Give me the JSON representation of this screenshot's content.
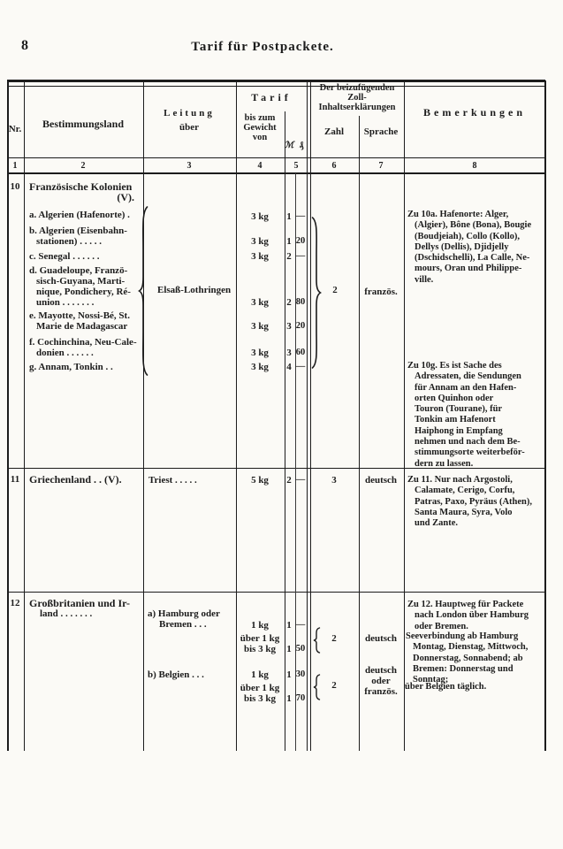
{
  "colors": {
    "ink": "#1c1c1c",
    "paper": "#fbfaf6"
  },
  "page": {
    "number": "8",
    "title": "Tarif für Postpackete."
  },
  "header": {
    "nr": "Nr.",
    "destination": "Bestimmungsland",
    "route1": "Leitung",
    "route2": "über",
    "tarif": "Tarif",
    "weight1": "bis zum",
    "weight2": "Gewicht",
    "weight3": "von",
    "mark_symbol": "ℳ",
    "pfennig_symbol": "₰",
    "customs1": "Der beizufügenden",
    "customs2": "Zoll-",
    "customs3": "Inhaltserklärungen",
    "zahl": "Zahl",
    "sprache": "Sprache",
    "remarks": "Bemerkungen",
    "col_numbers": [
      "1",
      "2",
      "3",
      "4",
      "5",
      "6",
      "7",
      "8"
    ]
  },
  "row10": {
    "nr": "10",
    "title": "Französische Kolonien",
    "title_note": "(V).",
    "item_a": [
      "a. Algerien (Hafenorte) ."
    ],
    "item_b": [
      "b. Algerien (Eisenbahn-",
      "stationen) . . . . ."
    ],
    "item_c": [
      "c. Senegal . . . . . ."
    ],
    "item_d": [
      "d. Guadeloupe, Franzö-",
      "sisch-Guyana, Marti-",
      "nique, Pondichery, Ré-",
      "union . . . . . . ."
    ],
    "item_e": [
      "e. Mayotte, Nossi-Bé, St.",
      "Marie de Madagascar"
    ],
    "item_f": [
      "f. Cochinchina, Neu-Cale-",
      "donien . . . . . ."
    ],
    "item_g": [
      "g. Annam, Tonkin . ."
    ],
    "route": "Elsaß-Lothringen",
    "weights": [
      "3 kg",
      "3 kg",
      "3 kg",
      "3 kg",
      "3 kg",
      "3 kg",
      "3 kg"
    ],
    "mark": [
      "1",
      "1",
      "2",
      "2",
      "3",
      "3",
      "4"
    ],
    "pfennig": [
      "—",
      "20",
      "—",
      "80",
      "20",
      "60",
      "—"
    ],
    "zahl": "2",
    "sprache": "französ.",
    "remark_a": [
      "Zu 10a. Hafenorte: Alger,",
      "(Algier), Bône (Bona), Bougie",
      "(Boudjeiah), Collo (Kollo),",
      "Dellys (Dellis), Djidjelly",
      "(Dschidschelli), La Calle, Ne-",
      "mours, Oran und Philippe-",
      "ville."
    ],
    "remark_g": [
      "Zu 10g. Es ist Sache des",
      "Adressaten, die Sendungen",
      "für Annam an den Hafen-",
      "orten Quinhon oder",
      "Touron (Tourane), für",
      "Tonkin am Hafenort",
      "Haiphong in Empfang",
      "nehmen und nach dem Be-",
      "stimmungsorte weiterbeför-",
      "dern zu lassen."
    ]
  },
  "row11": {
    "nr": "11",
    "name": "Griechenland . . (V).",
    "route": "Triest . . . . .",
    "weight": "5 kg",
    "mark": "2",
    "pfennig": "—",
    "zahl": "3",
    "sprache": "deutsch",
    "remark": [
      "Zu 11. Nur nach Argostoli,",
      "Calamate, Cerigo, Corfu,",
      "Patras, Paxo, Pyräus (Athen),",
      "Santa Maura, Syra, Volo",
      "und Zante."
    ]
  },
  "row12": {
    "nr": "12",
    "name1": "Großbritanien und Ir-",
    "name2": "land . . . . . . .",
    "route_a1": "a) Hamburg oder",
    "route_a2": "Bremen . . .",
    "route_b": "b) Belgien . . .",
    "w1": "1 kg",
    "w2a": "über 1 kg",
    "w2b": "bis 3 kg",
    "w3": "1 kg",
    "w4a": "über 1 kg",
    "w4b": "bis 3 kg",
    "m1": "1",
    "p1": "—",
    "m2": "1",
    "p2": "50",
    "m3": "1",
    "p3": "30",
    "m4": "1",
    "p4": "70",
    "zahl_a": "2",
    "zahl_b": "2",
    "sprache_a": "deutsch",
    "sprache_b1": "deutsch",
    "sprache_b2": "oder",
    "sprache_b3": "französ.",
    "remark_p1": [
      "Zu 12. Hauptweg für Packete",
      "nach London über Hamburg",
      "oder Bremen."
    ],
    "remark_p2": [
      "Seeverbindung ab Hamburg",
      "Montag, Dienstag, Mittwoch,",
      "Donnerstag, Sonnabend; ab",
      "Bremen: Donnerstag und",
      "Sonntag;"
    ],
    "remark_p3": "über Belgien täglich."
  }
}
